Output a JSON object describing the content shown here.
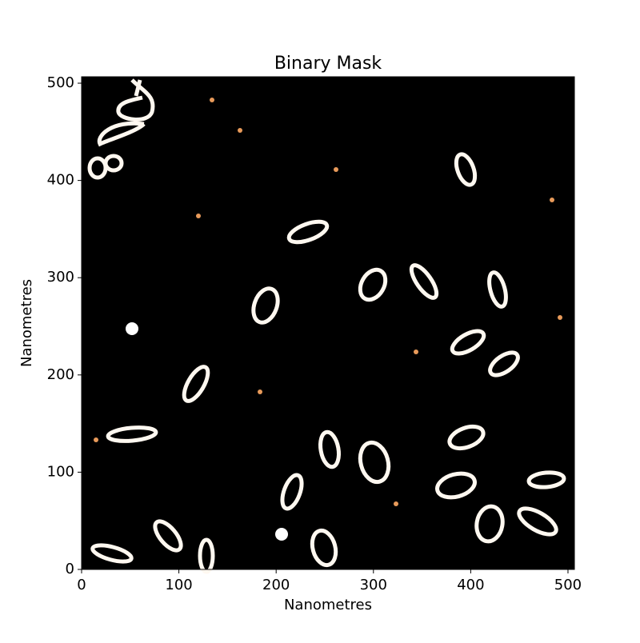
{
  "chart_data": {
    "type": "image",
    "title": "Binary Mask",
    "x_label": "Nanometres",
    "y_label": "Nanometres",
    "xlim": [
      0,
      506.6
    ],
    "ylim": [
      0,
      506.6
    ],
    "xticks": [
      0,
      100,
      200,
      300,
      400,
      500
    ],
    "yticks": [
      0,
      100,
      200,
      300,
      400,
      500
    ]
  }
}
